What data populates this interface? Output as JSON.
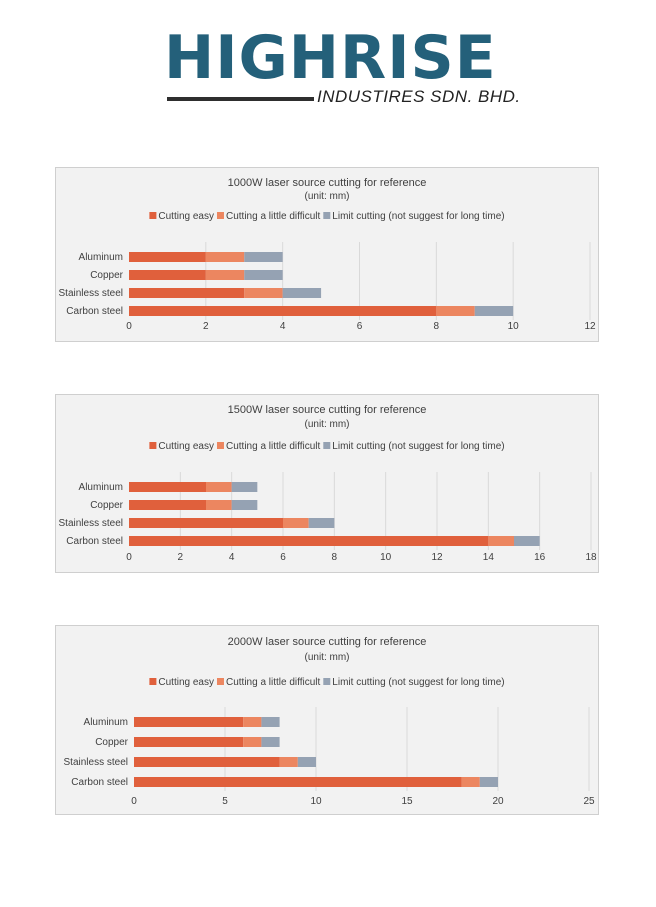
{
  "logo": {
    "name": "HIGHRISE",
    "subtitle": "INDUSTIRES SDN. BHD."
  },
  "chart_data": [
    {
      "type": "bar",
      "orientation": "horizontal",
      "stacked": true,
      "title": "1000W laser source cutting for reference",
      "subtitle": "(unit:  mm)",
      "categories": [
        "Aluminum",
        "Copper",
        "Stainless steel",
        "Carbon steel"
      ],
      "series": [
        {
          "name": "Cutting easy",
          "values": [
            2,
            2,
            3,
            8
          ]
        },
        {
          "name": "Cutting a little difficult",
          "values": [
            1,
            1,
            1,
            1
          ]
        },
        {
          "name": "Limit cutting  (not suggest for long time)",
          "values": [
            1,
            1,
            1,
            1
          ]
        }
      ],
      "colors": [
        "#e0603c",
        "#ec8660",
        "#95a2b3"
      ],
      "xlim": [
        0,
        12
      ],
      "xticks": [
        0,
        2,
        4,
        6,
        8,
        10,
        12
      ],
      "grid": "vertical",
      "legend": "top"
    },
    {
      "type": "bar",
      "orientation": "horizontal",
      "stacked": true,
      "title": "1500W laser source cutting for reference",
      "subtitle": "(unit:  mm)",
      "categories": [
        "Aluminum",
        "Copper",
        "Stainless steel",
        "Carbon steel"
      ],
      "series": [
        {
          "name": "Cutting easy",
          "values": [
            3,
            3,
            6,
            14
          ]
        },
        {
          "name": "Cutting a little difficult",
          "values": [
            1,
            1,
            1,
            1
          ]
        },
        {
          "name": "Limit cutting  (not suggest for long time)",
          "values": [
            1,
            1,
            1,
            1
          ]
        }
      ],
      "colors": [
        "#e0603c",
        "#ec8660",
        "#95a2b3"
      ],
      "xlim": [
        0,
        18
      ],
      "xticks": [
        0,
        2,
        4,
        6,
        8,
        10,
        12,
        14,
        16,
        18
      ],
      "grid": "vertical",
      "legend": "top"
    },
    {
      "type": "bar",
      "orientation": "horizontal",
      "stacked": true,
      "title": "2000W laser source cutting for reference",
      "subtitle": "(unit:  mm)",
      "categories": [
        "Aluminum",
        "Copper",
        "Stainless steel",
        "Carbon steel"
      ],
      "series": [
        {
          "name": "Cutting easy",
          "values": [
            6,
            6,
            8,
            18
          ]
        },
        {
          "name": "Cutting a little difficult",
          "values": [
            1,
            1,
            1,
            1
          ]
        },
        {
          "name": "Limit cutting  (not suggest for long time)",
          "values": [
            1,
            1,
            1,
            1
          ]
        }
      ],
      "colors": [
        "#e0603c",
        "#ec8660",
        "#95a2b3"
      ],
      "xlim": [
        0,
        25
      ],
      "xticks": [
        0,
        5,
        10,
        15,
        20,
        25
      ],
      "grid": "vertical",
      "legend": "top"
    }
  ]
}
